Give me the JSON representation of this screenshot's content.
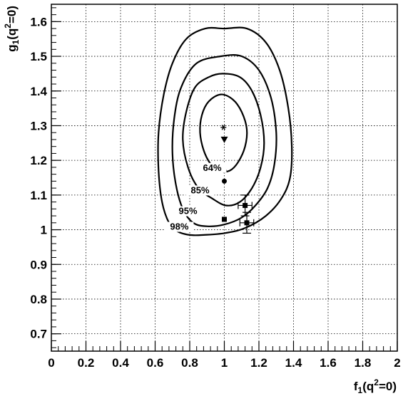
{
  "chart_data": {
    "type": "scatter",
    "title": "",
    "xlabel": {
      "base": "f",
      "sub": "1",
      "open": "(q",
      "sup": "2",
      "close": "=0)"
    },
    "ylabel": {
      "base": "g",
      "sub": "1",
      "open": "(q",
      "sup": "2",
      "close": "=0)"
    },
    "xlim": [
      0,
      2
    ],
    "ylim": [
      0.65,
      1.65
    ],
    "grid": true,
    "x_ticks": [
      {
        "value": 0,
        "label": "0"
      },
      {
        "value": 0.2,
        "label": "0.2"
      },
      {
        "value": 0.4,
        "label": "0.4"
      },
      {
        "value": 0.6,
        "label": "0.6"
      },
      {
        "value": 0.8,
        "label": "0.8"
      },
      {
        "value": 1.0,
        "label": "1"
      },
      {
        "value": 1.2,
        "label": "1.2"
      },
      {
        "value": 1.4,
        "label": "1.4"
      },
      {
        "value": 1.6,
        "label": "1.6"
      },
      {
        "value": 1.8,
        "label": "1.8"
      },
      {
        "value": 2.0,
        "label": "2"
      }
    ],
    "y_ticks": [
      {
        "value": 0.7,
        "label": "0.7"
      },
      {
        "value": 0.8,
        "label": "0.8"
      },
      {
        "value": 0.9,
        "label": "0.9"
      },
      {
        "value": 1.0,
        "label": "1"
      },
      {
        "value": 1.1,
        "label": "1.1"
      },
      {
        "value": 1.2,
        "label": "1.2"
      },
      {
        "value": 1.3,
        "label": "1.3"
      },
      {
        "value": 1.4,
        "label": "1.4"
      },
      {
        "value": 1.5,
        "label": "1.5"
      },
      {
        "value": 1.6,
        "label": "1.6"
      }
    ],
    "contours": [
      {
        "label": "64%",
        "label_at": [
          0.93,
          1.17
        ],
        "points": [
          [
            0.98,
            1.39
          ],
          [
            1.05,
            1.375
          ],
          [
            1.1,
            1.34
          ],
          [
            1.13,
            1.29
          ],
          [
            1.12,
            1.24
          ],
          [
            1.08,
            1.195
          ],
          [
            1.03,
            1.17
          ],
          [
            0.97,
            1.17
          ],
          [
            0.92,
            1.19
          ],
          [
            0.88,
            1.23
          ],
          [
            0.86,
            1.28
          ],
          [
            0.87,
            1.33
          ],
          [
            0.91,
            1.37
          ],
          [
            0.98,
            1.39
          ]
        ]
      },
      {
        "label": "85%",
        "label_at": [
          0.86,
          1.105
        ],
        "points": [
          [
            0.99,
            1.45
          ],
          [
            1.09,
            1.44
          ],
          [
            1.16,
            1.4
          ],
          [
            1.21,
            1.33
          ],
          [
            1.23,
            1.25
          ],
          [
            1.21,
            1.18
          ],
          [
            1.16,
            1.12
          ],
          [
            1.09,
            1.08
          ],
          [
            1.01,
            1.07
          ],
          [
            0.93,
            1.09
          ],
          [
            0.85,
            1.12
          ],
          [
            0.79,
            1.18
          ],
          [
            0.76,
            1.26
          ],
          [
            0.78,
            1.34
          ],
          [
            0.83,
            1.41
          ],
          [
            0.91,
            1.44
          ],
          [
            0.99,
            1.45
          ]
        ]
      },
      {
        "label": "95%",
        "label_at": [
          0.79,
          1.045
        ],
        "points": [
          [
            0.98,
            1.5
          ],
          [
            1.1,
            1.5
          ],
          [
            1.2,
            1.46
          ],
          [
            1.27,
            1.38
          ],
          [
            1.3,
            1.28
          ],
          [
            1.29,
            1.19
          ],
          [
            1.25,
            1.12
          ],
          [
            1.18,
            1.07
          ],
          [
            1.1,
            1.035
          ],
          [
            1.0,
            1.015
          ],
          [
            0.9,
            1.01
          ],
          [
            0.82,
            1.02
          ],
          [
            0.76,
            1.06
          ],
          [
            0.72,
            1.13
          ],
          [
            0.7,
            1.22
          ],
          [
            0.71,
            1.32
          ],
          [
            0.75,
            1.41
          ],
          [
            0.84,
            1.48
          ],
          [
            0.98,
            1.5
          ]
        ]
      },
      {
        "label": "98%",
        "label_at": [
          0.74,
          1.0
        ],
        "points": [
          [
            1.0,
            1.58
          ],
          [
            1.13,
            1.58
          ],
          [
            1.24,
            1.54
          ],
          [
            1.32,
            1.46
          ],
          [
            1.37,
            1.35
          ],
          [
            1.39,
            1.24
          ],
          [
            1.38,
            1.15
          ],
          [
            1.33,
            1.09
          ],
          [
            1.24,
            1.04
          ],
          [
            1.12,
            1.005
          ],
          [
            1.0,
            0.99
          ],
          [
            0.88,
            0.985
          ],
          [
            0.8,
            0.985
          ],
          [
            0.73,
            0.995
          ],
          [
            0.68,
            1.02
          ],
          [
            0.64,
            1.08
          ],
          [
            0.62,
            1.17
          ],
          [
            0.62,
            1.28
          ],
          [
            0.65,
            1.39
          ],
          [
            0.7,
            1.48
          ],
          [
            0.78,
            1.55
          ],
          [
            0.89,
            1.58
          ],
          [
            1.0,
            1.58
          ]
        ]
      }
    ],
    "points": [
      {
        "x": 0.995,
        "y": 1.295,
        "marker": "star"
      },
      {
        "x": 1.0,
        "y": 1.26,
        "marker": "triangle-down"
      },
      {
        "x": 1.0,
        "y": 1.17,
        "marker": "circle"
      },
      {
        "x": 1.0,
        "y": 1.14,
        "marker": "circle"
      },
      {
        "x": 1.0,
        "y": 1.03,
        "marker": "square"
      },
      {
        "x": 1.12,
        "y": 1.07,
        "marker": "square",
        "xerr": 0.04,
        "yerr": 0.03
      },
      {
        "x": 1.13,
        "y": 1.02,
        "marker": "square",
        "xerr": 0.04,
        "yerr": 0.03
      }
    ]
  }
}
